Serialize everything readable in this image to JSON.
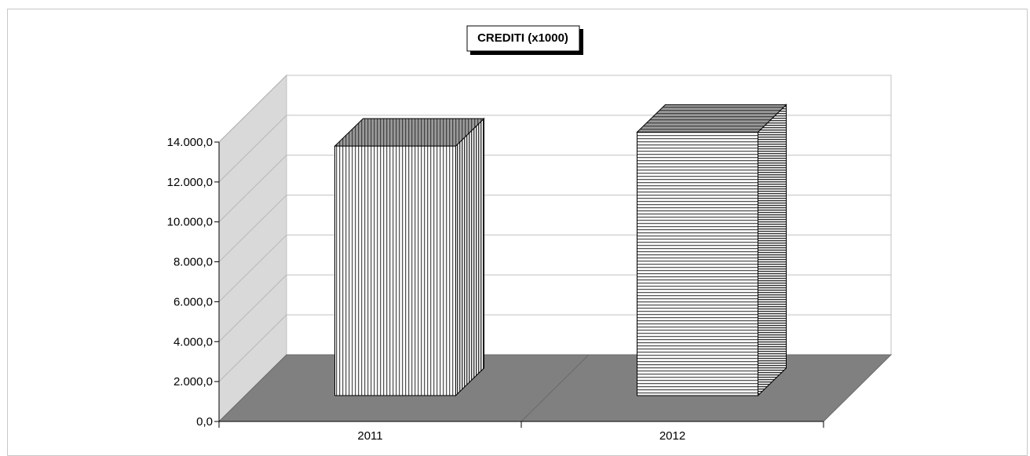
{
  "chart_data": {
    "type": "bar",
    "title": "CREDITI (x1000)",
    "categories": [
      "2011",
      "2012"
    ],
    "values": [
      12500,
      13200
    ],
    "ylim": [
      0,
      14000
    ],
    "yticks": [
      0,
      2000,
      4000,
      6000,
      8000,
      10000,
      12000,
      14000
    ],
    "ytick_labels": [
      "0,0",
      "2.000,0",
      "4.000,0",
      "6.000,0",
      "8.000,0",
      "10.000,0",
      "12.000,0",
      "14.000,0"
    ],
    "grid": true,
    "legend": "none",
    "colors": {
      "floor": "#808080",
      "side_wall": "#d9d9d9",
      "gridline": "#c0c0c0",
      "bar_top": "#8c8c8c",
      "bar_stripe": "#555555"
    }
  }
}
